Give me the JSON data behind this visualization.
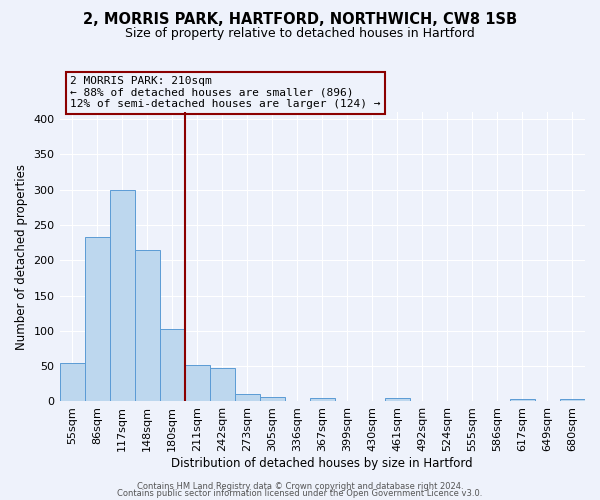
{
  "title": "2, MORRIS PARK, HARTFORD, NORTHWICH, CW8 1SB",
  "subtitle": "Size of property relative to detached houses in Hartford",
  "xlabel": "Distribution of detached houses by size in Hartford",
  "ylabel": "Number of detached properties",
  "bar_labels": [
    "55sqm",
    "86sqm",
    "117sqm",
    "148sqm",
    "180sqm",
    "211sqm",
    "242sqm",
    "273sqm",
    "305sqm",
    "336sqm",
    "367sqm",
    "399sqm",
    "430sqm",
    "461sqm",
    "492sqm",
    "524sqm",
    "555sqm",
    "586sqm",
    "617sqm",
    "649sqm",
    "680sqm"
  ],
  "bar_values": [
    54,
    233,
    300,
    215,
    103,
    52,
    48,
    11,
    6,
    0,
    5,
    0,
    0,
    5,
    0,
    0,
    0,
    0,
    4,
    0,
    4
  ],
  "bar_color": "#bdd7ee",
  "bar_edge_color": "#5b9bd5",
  "background_color": "#eef2fb",
  "grid_color": "#ffffff",
  "vline_color": "#8b0000",
  "vline_index": 5,
  "annotation_text": "2 MORRIS PARK: 210sqm\n← 88% of detached houses are smaller (896)\n12% of semi-detached houses are larger (124) →",
  "annotation_box_edgecolor": "#8b0000",
  "ylim": [
    0,
    410
  ],
  "yticks": [
    0,
    50,
    100,
    150,
    200,
    250,
    300,
    350,
    400
  ],
  "footer_line1": "Contains HM Land Registry data © Crown copyright and database right 2024.",
  "footer_line2": "Contains public sector information licensed under the Open Government Licence v3.0."
}
